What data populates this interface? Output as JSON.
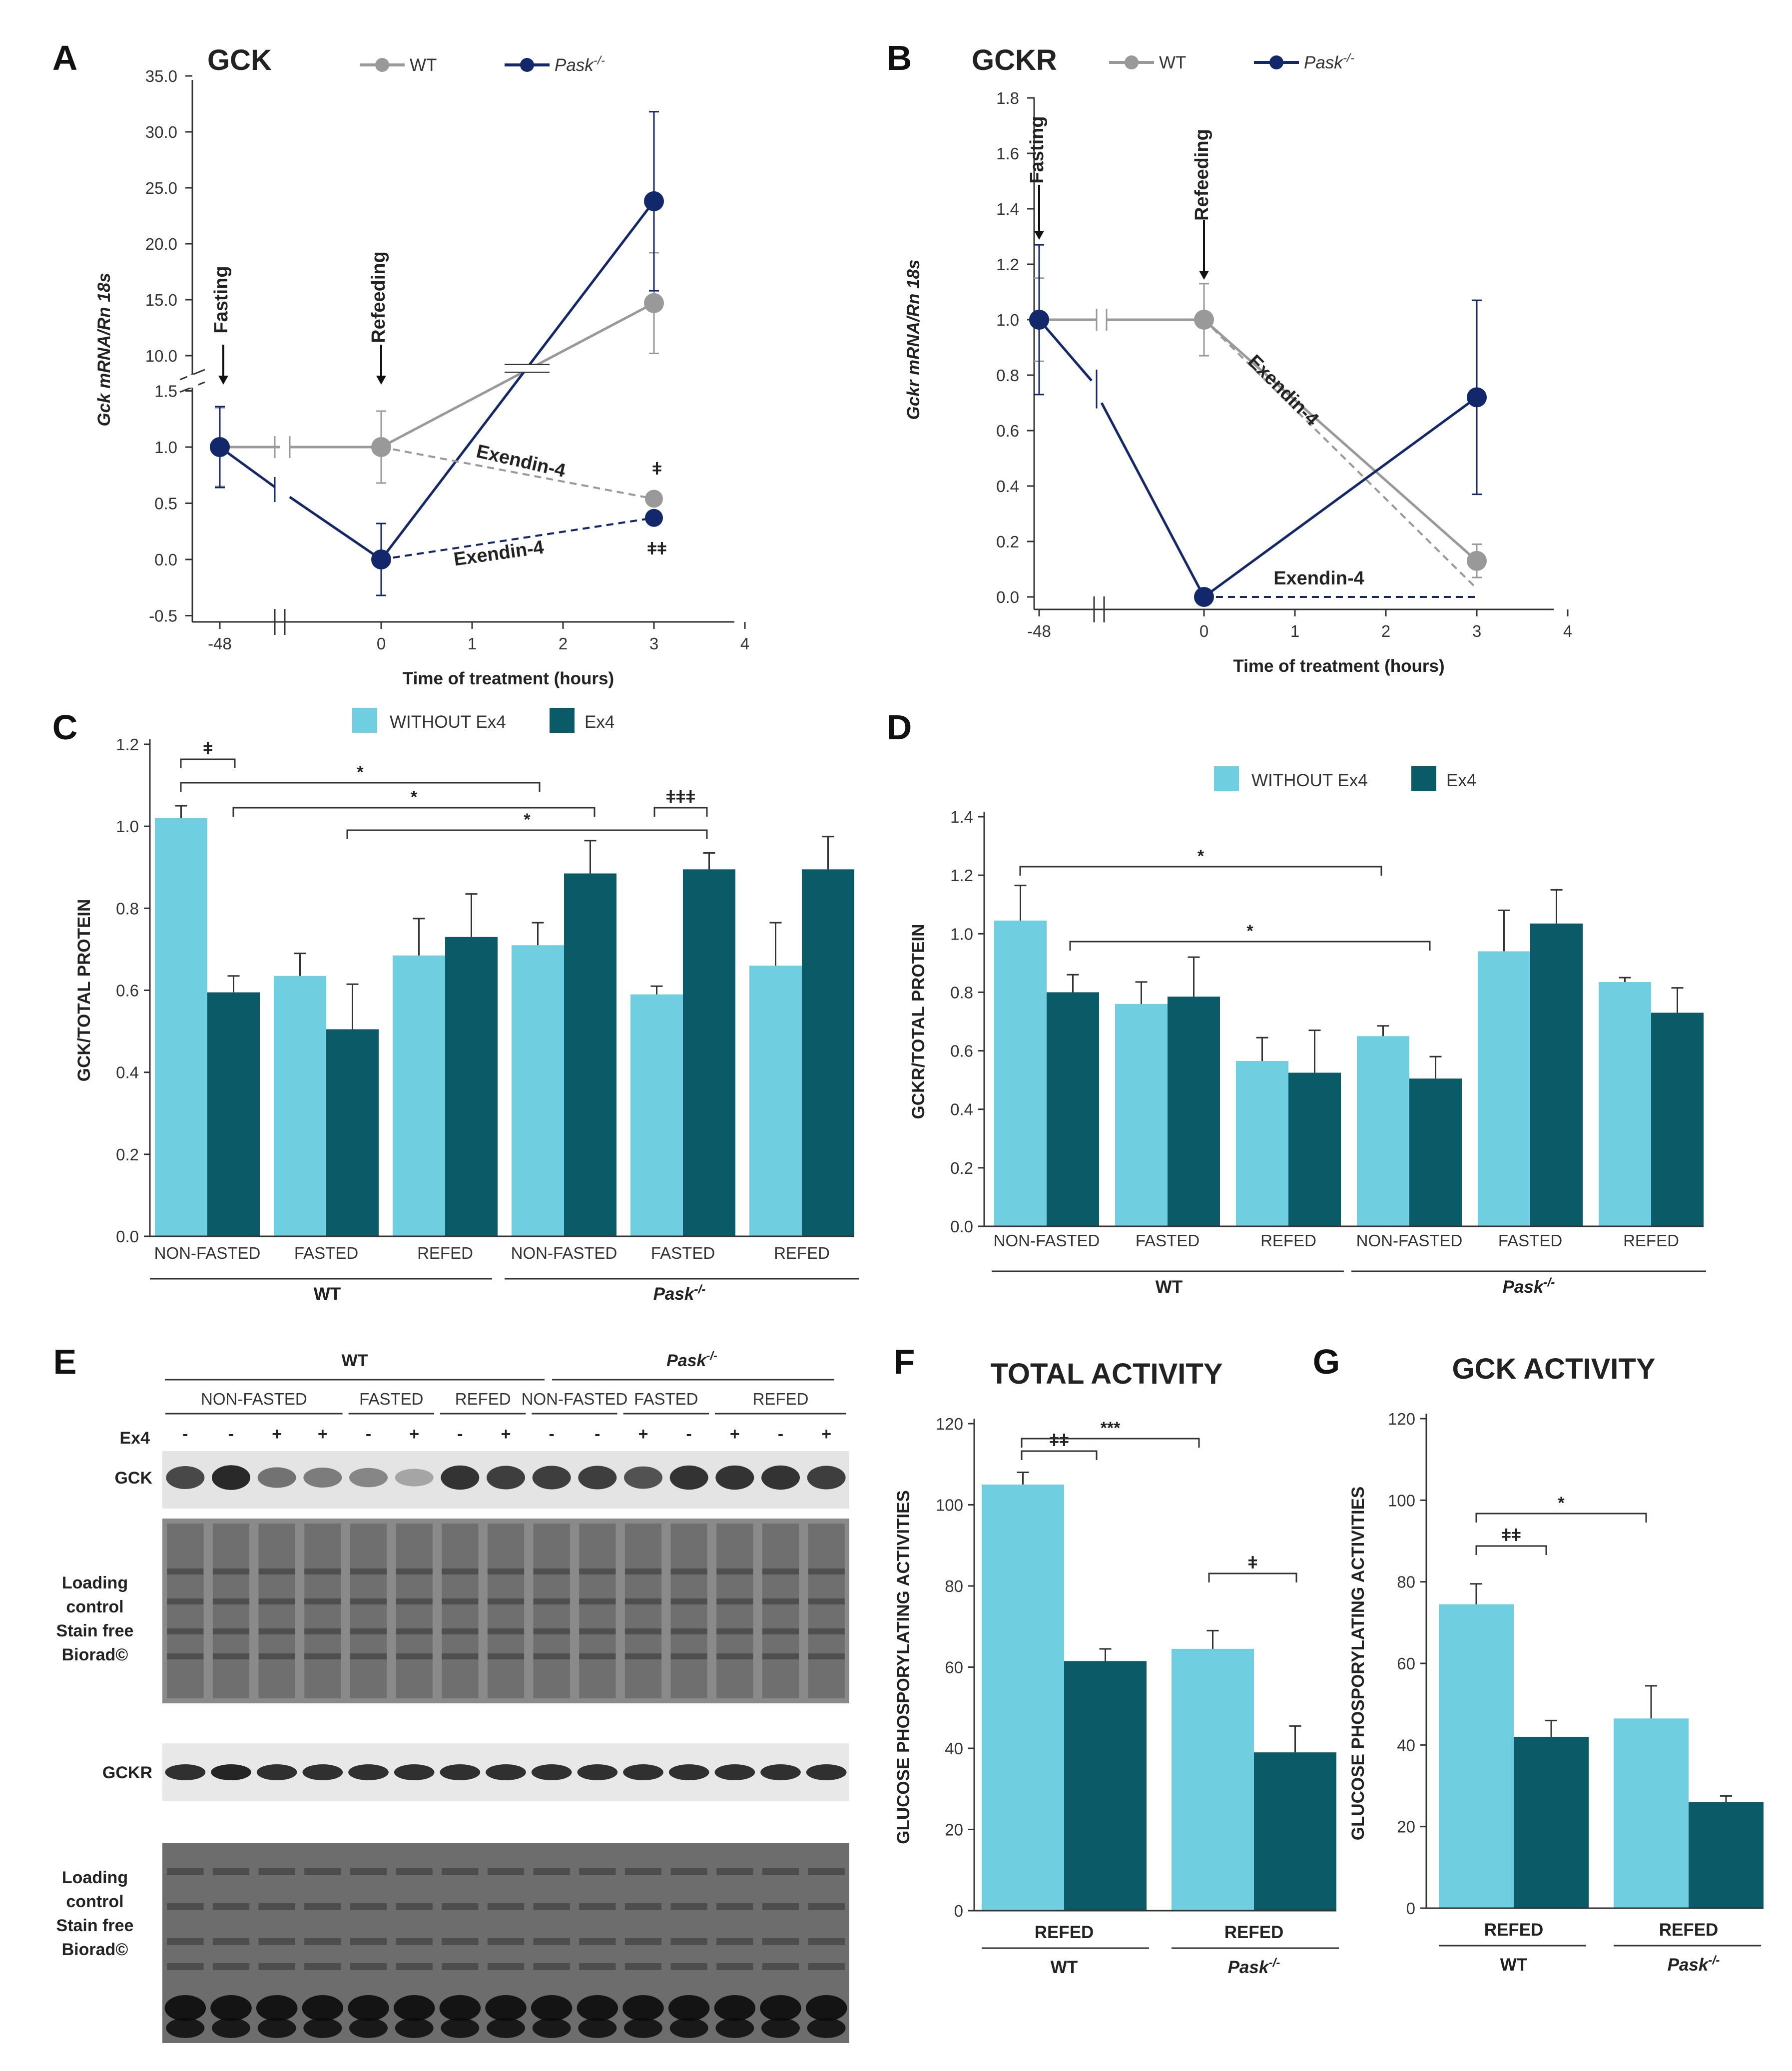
{
  "colors": {
    "wt": "#999999",
    "pask": "#13286a",
    "light": "#6fcfe0",
    "dark": "#0b5a68",
    "axis": "#333333"
  },
  "chart_data": [
    {
      "id": "A",
      "type": "line",
      "panel": "A",
      "title": "GCK",
      "legend": [
        "WT",
        "Pask-/-"
      ],
      "ylabel": "Gck mRNA/Rn 18s",
      "xlabel": "Time of treatment (hours)",
      "yticks_lower": [
        "-0.5",
        "0.0",
        "0.5",
        "1.0",
        "1.5"
      ],
      "yticks_upper": [
        "10.0",
        "15.0",
        "20.0",
        "25.0",
        "30.0",
        "35.0"
      ],
      "xticks": [
        "-48",
        "0",
        "1",
        "2",
        "3",
        "4"
      ],
      "series": [
        {
          "name": "WT",
          "points": [
            {
              "x": -48,
              "y": 1.0
            },
            {
              "x": 0,
              "y": 1.0
            },
            {
              "x": 3,
              "y": 14.7
            }
          ],
          "err": [
            0.35,
            0.32,
            4.5
          ]
        },
        {
          "name": "Pask-/-",
          "points": [
            {
              "x": -48,
              "y": 1.0
            },
            {
              "x": 0,
              "y": 0.0
            },
            {
              "x": 3,
              "y": 23.8
            }
          ],
          "err": [
            0.36,
            0.32,
            8.0
          ]
        },
        {
          "name": "WT Exendin-4",
          "points": [
            {
              "x": 0,
              "y": 1.0
            },
            {
              "x": 3,
              "y": 0.54
            }
          ],
          "err": [
            0,
            0.05
          ]
        },
        {
          "name": "Pask-/- Exendin-4",
          "points": [
            {
              "x": 0,
              "y": 0.0
            },
            {
              "x": 3,
              "y": 0.37
            }
          ],
          "err": [
            0,
            0.02
          ]
        }
      ],
      "annotations": [
        "Fasting",
        "Refeeding",
        "Exendin-4",
        "Exendin-4",
        "ǂ",
        "ǂǂ"
      ]
    },
    {
      "id": "B",
      "type": "line",
      "panel": "B",
      "title": "GCKR",
      "legend": [
        "WT",
        "Pask-/-"
      ],
      "ylabel": "Gckr mRNA/Rn 18s",
      "xlabel": "Time of treatment (hours)",
      "yticks": [
        "0.0",
        "0.2",
        "0.4",
        "0.6",
        "0.8",
        "1.0",
        "1.2",
        "1.4",
        "1.6",
        "1.8"
      ],
      "ylim": [
        0,
        1.8
      ],
      "xticks": [
        "-48",
        "0",
        "1",
        "2",
        "3",
        "4"
      ],
      "series": [
        {
          "name": "WT",
          "points": [
            {
              "x": -48,
              "y": 1.0
            },
            {
              "x": 0,
              "y": 1.0
            },
            {
              "x": 3,
              "y": 0.13
            }
          ],
          "err": [
            0.15,
            0.13,
            0.06
          ]
        },
        {
          "name": "Pask-/-",
          "points": [
            {
              "x": -48,
              "y": 1.0
            },
            {
              "x": 0,
              "y": 0.0
            },
            {
              "x": 3,
              "y": 0.72
            }
          ],
          "err": [
            0.27,
            0.02,
            0.35
          ]
        },
        {
          "name": "WT Exendin-4",
          "points": [
            {
              "x": 0,
              "y": 1.0
            },
            {
              "x": 3,
              "y": 0.03
            }
          ],
          "err": [
            0,
            0
          ]
        },
        {
          "name": "Pask-/- Exendin-4",
          "points": [
            {
              "x": 0,
              "y": 0.0
            },
            {
              "x": 3,
              "y": 0.0
            }
          ],
          "err": [
            0,
            0
          ]
        }
      ],
      "annotations": [
        "Fasting",
        "Refeeding",
        "Exendin-4",
        "Exendin-4"
      ]
    },
    {
      "id": "C",
      "type": "bar",
      "panel": "C",
      "legend": [
        "WITHOUT Ex4",
        "Ex4"
      ],
      "ylabel": "GCK/TOTAL PROTEIN",
      "yticks": [
        "0.0",
        "0.2",
        "0.4",
        "0.6",
        "0.8",
        "1.0",
        "1.2"
      ],
      "ylim": [
        0,
        1.2
      ],
      "categories": [
        "NON-FASTED",
        "FASTED",
        "REFED",
        "NON-FASTED",
        "FASTED",
        "REFED"
      ],
      "groups": [
        "WT",
        "Pask-/-"
      ],
      "series": [
        {
          "name": "WITHOUT Ex4",
          "values": [
            1.02,
            0.635,
            0.685,
            0.71,
            0.59,
            0.66
          ],
          "err": [
            0.03,
            0.055,
            0.09,
            0.055,
            0.02,
            0.105
          ]
        },
        {
          "name": "Ex4",
          "values": [
            0.595,
            0.505,
            0.73,
            0.885,
            0.895,
            0.895
          ],
          "err": [
            0.04,
            0.11,
            0.105,
            0.08,
            0.04,
            0.08
          ]
        }
      ],
      "significance": [
        "ǂ",
        "*",
        "*",
        "*",
        "ǂǂǂ"
      ]
    },
    {
      "id": "D",
      "type": "bar",
      "panel": "D",
      "legend": [
        "WITHOUT Ex4",
        "Ex4"
      ],
      "ylabel": "GCKR/TOTAL PROTEIN",
      "yticks": [
        "0.0",
        "0.2",
        "0.4",
        "0.6",
        "0.8",
        "1.0",
        "1.2",
        "1.4"
      ],
      "ylim": [
        0,
        1.4
      ],
      "categories": [
        "NON-FASTED",
        "FASTED",
        "REFED",
        "NON-FASTED",
        "FASTED",
        "REFED"
      ],
      "groups": [
        "WT",
        "Pask-/-"
      ],
      "series": [
        {
          "name": "WITHOUT Ex4",
          "values": [
            1.045,
            0.76,
            0.565,
            0.65,
            0.94,
            0.835
          ],
          "err": [
            0.12,
            0.075,
            0.08,
            0.035,
            0.14,
            0.015
          ]
        },
        {
          "name": "Ex4",
          "values": [
            0.8,
            0.785,
            0.525,
            0.505,
            1.035,
            0.73
          ],
          "err": [
            0.06,
            0.135,
            0.145,
            0.075,
            0.115,
            0.085
          ]
        }
      ],
      "significance": [
        "*",
        "*"
      ]
    },
    {
      "id": "F",
      "type": "bar",
      "panel": "F",
      "title": "TOTAL ACTIVITY",
      "ylabel": "GLUCOSE PHOSPORYLATING ACTIVITIES",
      "yticks": [
        "0",
        "20",
        "40",
        "60",
        "80",
        "100",
        "120"
      ],
      "ylim": [
        0,
        120
      ],
      "categories": [
        "REFED",
        "REFED"
      ],
      "groups": [
        "WT",
        "Pask-/-"
      ],
      "series": [
        {
          "name": "WITHOUT Ex4",
          "values": [
            105,
            64.5
          ],
          "err": [
            3,
            4.5
          ]
        },
        {
          "name": "Ex4",
          "values": [
            61.5,
            39
          ],
          "err": [
            3,
            6.5
          ]
        }
      ],
      "significance": [
        "ǂǂ",
        "***",
        "ǂ"
      ]
    },
    {
      "id": "G",
      "type": "bar",
      "panel": "G",
      "title": "GCK ACTIVITY",
      "ylabel": "GLUCOSE PHOSPORYLATING ACTIVITIES",
      "yticks": [
        "0",
        "20",
        "40",
        "60",
        "80",
        "100",
        "120"
      ],
      "ylim": [
        0,
        120
      ],
      "categories": [
        "REFED",
        "REFED"
      ],
      "groups": [
        "WT",
        "Pask-/-"
      ],
      "series": [
        {
          "name": "WITHOUT Ex4",
          "values": [
            74.5,
            46.5
          ],
          "err": [
            5,
            8
          ]
        },
        {
          "name": "Ex4",
          "values": [
            42,
            26
          ],
          "err": [
            4,
            1.5
          ]
        }
      ],
      "significance": [
        "ǂǂ",
        "*"
      ]
    }
  ],
  "blot": {
    "panel": "E",
    "groups": [
      "WT",
      "Pask-/-"
    ],
    "conditions": [
      "NON-FASTED",
      "FASTED",
      "REFED",
      "NON-FASTED",
      "FASTED",
      "REFED"
    ],
    "ex4_label": "Ex4",
    "ex4": [
      "-",
      "-",
      "+",
      "+",
      "-",
      "+",
      "-",
      "+",
      "-",
      "-",
      "+",
      "-",
      "+",
      "-",
      "+"
    ],
    "gck_intensity": [
      0.75,
      0.9,
      0.55,
      0.5,
      0.45,
      0.3,
      0.85,
      0.8,
      0.8,
      0.8,
      0.7,
      0.85,
      0.85,
      0.85,
      0.8
    ],
    "gckr_intensity": [
      0.85,
      0.9,
      0.85,
      0.85,
      0.85,
      0.85,
      0.85,
      0.85,
      0.85,
      0.85,
      0.85,
      0.85,
      0.85,
      0.85,
      0.85
    ],
    "rows": [
      "GCK",
      "Loading control Stain free Biorad©",
      "GCKR",
      "Loading control Stain free Biorad©"
    ],
    "loading_lines": [
      "Loading",
      "control",
      "Stain free",
      "Biorad©"
    ]
  }
}
